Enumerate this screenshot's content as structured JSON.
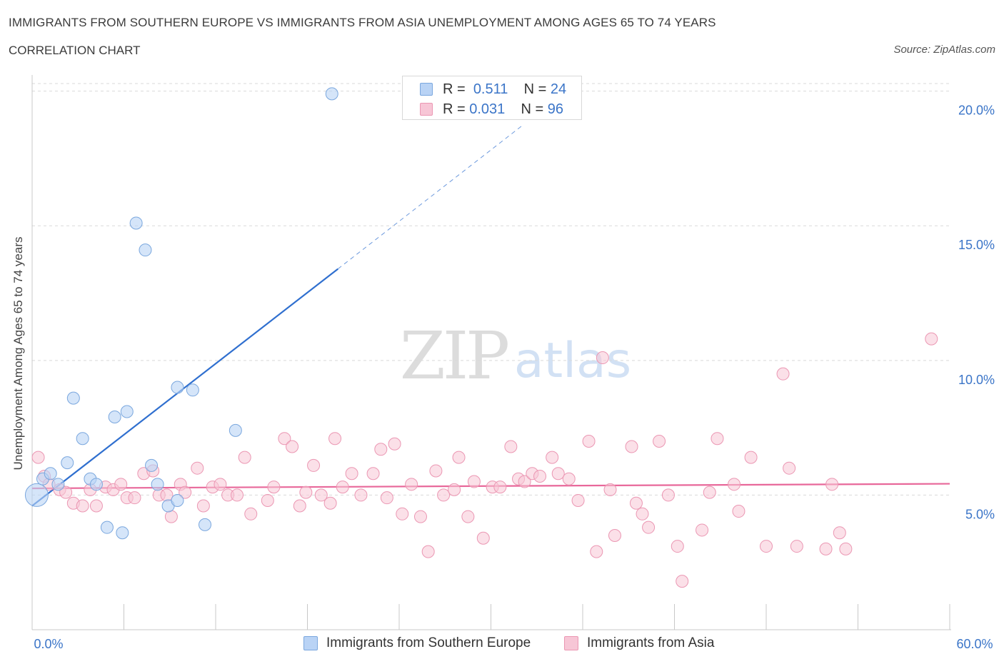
{
  "header": {
    "title": "IMMIGRANTS FROM SOUTHERN EUROPE VS IMMIGRANTS FROM ASIA UNEMPLOYMENT AMONG AGES 65 TO 74 YEARS",
    "subtitle": "CORRELATION CHART",
    "source": "Source: ZipAtlas.com"
  },
  "watermark": {
    "zip": "ZIP",
    "atlas": "atlas"
  },
  "legend_top": {
    "rows": [
      {
        "r_label": "R =",
        "r_value": "0.511",
        "n_label": "N =",
        "n_value": "24"
      },
      {
        "r_label": "R =",
        "r_value": "0.031",
        "n_label": "N =",
        "n_value": "96"
      }
    ]
  },
  "colors": {
    "blue_fill": "#b9d3f5",
    "blue_stroke": "#7aa7de",
    "blue_line": "#2f6fcf",
    "pink_fill": "#f7c6d6",
    "pink_stroke": "#eb97b3",
    "pink_line": "#e8689a",
    "tick_label": "#3b75c8",
    "grid": "#d9d9d9"
  },
  "chart_data": {
    "type": "scatter",
    "title": "IMMIGRANTS FROM SOUTHERN EUROPE VS IMMIGRANTS FROM ASIA UNEMPLOYMENT AMONG AGES 65 TO 74 YEARS",
    "ylabel": "Unemployment Among Ages 65 to 74 years",
    "xlabel": "",
    "xlim": [
      0,
      60
    ],
    "ylim": [
      0,
      20.6
    ],
    "x_tick_labels": [
      {
        "value": 0,
        "label": "0.0%"
      },
      {
        "value": 60,
        "label": "60.0%"
      }
    ],
    "y_ticks": [
      {
        "value": 5,
        "label": "5.0%"
      },
      {
        "value": 10,
        "label": "10.0%"
      },
      {
        "value": 15,
        "label": "15.0%"
      },
      {
        "value": 20,
        "label": "20.0%"
      }
    ],
    "grid": "horizontal-dashed",
    "legend_placement": "bottom-center",
    "series": [
      {
        "name": "Immigrants from Southern Europe",
        "color": "#b9d3f5",
        "points": [
          [
            0.3,
            5.0
          ],
          [
            0.7,
            5.6
          ],
          [
            1.2,
            5.8
          ],
          [
            1.7,
            5.4
          ],
          [
            2.3,
            6.2
          ],
          [
            2.7,
            8.6
          ],
          [
            3.3,
            7.1
          ],
          [
            3.8,
            5.6
          ],
          [
            4.2,
            5.4
          ],
          [
            4.9,
            3.8
          ],
          [
            5.4,
            7.9
          ],
          [
            5.9,
            3.6
          ],
          [
            6.2,
            8.1
          ],
          [
            6.8,
            15.1
          ],
          [
            7.4,
            14.1
          ],
          [
            7.8,
            6.1
          ],
          [
            8.2,
            5.4
          ],
          [
            8.9,
            4.6
          ],
          [
            9.5,
            4.8
          ],
          [
            9.5,
            9.0
          ],
          [
            10.5,
            8.9
          ],
          [
            11.3,
            3.9
          ],
          [
            13.3,
            7.4
          ],
          [
            19.6,
            19.9
          ]
        ],
        "trendline": {
          "x": [
            0,
            20
          ],
          "y": [
            4.6,
            13.4
          ],
          "extended_to": [
            32,
            18.7
          ]
        }
      },
      {
        "name": "Immigrants from Asia",
        "color": "#f7c6d6",
        "points": [
          [
            0.4,
            6.4
          ],
          [
            0.8,
            5.7
          ],
          [
            1.1,
            5.4
          ],
          [
            1.8,
            5.2
          ],
          [
            2.2,
            5.1
          ],
          [
            2.7,
            4.7
          ],
          [
            3.3,
            4.6
          ],
          [
            3.8,
            5.2
          ],
          [
            4.2,
            4.6
          ],
          [
            4.8,
            5.3
          ],
          [
            5.3,
            5.2
          ],
          [
            5.8,
            5.4
          ],
          [
            6.2,
            4.9
          ],
          [
            6.7,
            4.9
          ],
          [
            7.3,
            5.8
          ],
          [
            7.9,
            5.9
          ],
          [
            8.3,
            5.0
          ],
          [
            8.8,
            5.0
          ],
          [
            9.1,
            4.2
          ],
          [
            9.7,
            5.4
          ],
          [
            10.0,
            5.1
          ],
          [
            10.8,
            6.0
          ],
          [
            11.2,
            4.6
          ],
          [
            11.8,
            5.3
          ],
          [
            12.3,
            5.4
          ],
          [
            12.8,
            5.0
          ],
          [
            13.4,
            5.0
          ],
          [
            13.9,
            6.4
          ],
          [
            14.3,
            4.3
          ],
          [
            15.4,
            4.8
          ],
          [
            15.8,
            5.3
          ],
          [
            16.5,
            7.1
          ],
          [
            17.0,
            6.8
          ],
          [
            17.5,
            4.6
          ],
          [
            17.9,
            5.1
          ],
          [
            18.4,
            6.1
          ],
          [
            18.9,
            5.0
          ],
          [
            19.5,
            4.7
          ],
          [
            19.8,
            7.1
          ],
          [
            20.3,
            5.3
          ],
          [
            20.9,
            5.8
          ],
          [
            21.5,
            5.0
          ],
          [
            22.3,
            5.8
          ],
          [
            22.8,
            6.7
          ],
          [
            23.2,
            4.9
          ],
          [
            23.7,
            6.9
          ],
          [
            24.2,
            4.3
          ],
          [
            24.8,
            5.4
          ],
          [
            25.4,
            4.2
          ],
          [
            25.9,
            2.9
          ],
          [
            26.4,
            5.9
          ],
          [
            26.9,
            5.0
          ],
          [
            27.6,
            5.2
          ],
          [
            27.9,
            6.4
          ],
          [
            28.5,
            4.2
          ],
          [
            28.9,
            5.5
          ],
          [
            29.5,
            3.4
          ],
          [
            30.1,
            5.3
          ],
          [
            30.6,
            5.3
          ],
          [
            31.3,
            6.8
          ],
          [
            31.8,
            5.6
          ],
          [
            32.2,
            5.5
          ],
          [
            32.7,
            5.8
          ],
          [
            33.2,
            5.7
          ],
          [
            34.0,
            6.4
          ],
          [
            34.4,
            5.8
          ],
          [
            35.1,
            5.6
          ],
          [
            35.7,
            4.8
          ],
          [
            36.4,
            7.0
          ],
          [
            36.9,
            2.9
          ],
          [
            37.3,
            10.1
          ],
          [
            37.8,
            5.2
          ],
          [
            38.1,
            3.5
          ],
          [
            39.2,
            6.8
          ],
          [
            39.5,
            4.7
          ],
          [
            39.9,
            4.3
          ],
          [
            40.3,
            3.8
          ],
          [
            41.0,
            7.0
          ],
          [
            41.6,
            5.0
          ],
          [
            42.2,
            3.1
          ],
          [
            42.5,
            1.8
          ],
          [
            43.8,
            3.7
          ],
          [
            44.3,
            5.1
          ],
          [
            44.8,
            7.1
          ],
          [
            45.9,
            5.4
          ],
          [
            46.2,
            4.4
          ],
          [
            47.0,
            6.4
          ],
          [
            48.0,
            3.1
          ],
          [
            49.1,
            9.5
          ],
          [
            49.5,
            6.0
          ],
          [
            50.0,
            3.1
          ],
          [
            51.9,
            3.0
          ],
          [
            52.3,
            5.4
          ],
          [
            52.8,
            3.6
          ],
          [
            53.2,
            3.0
          ],
          [
            58.8,
            10.8
          ]
        ],
        "trendline": {
          "x": [
            0,
            60
          ],
          "y": [
            5.25,
            5.42
          ]
        }
      }
    ]
  }
}
